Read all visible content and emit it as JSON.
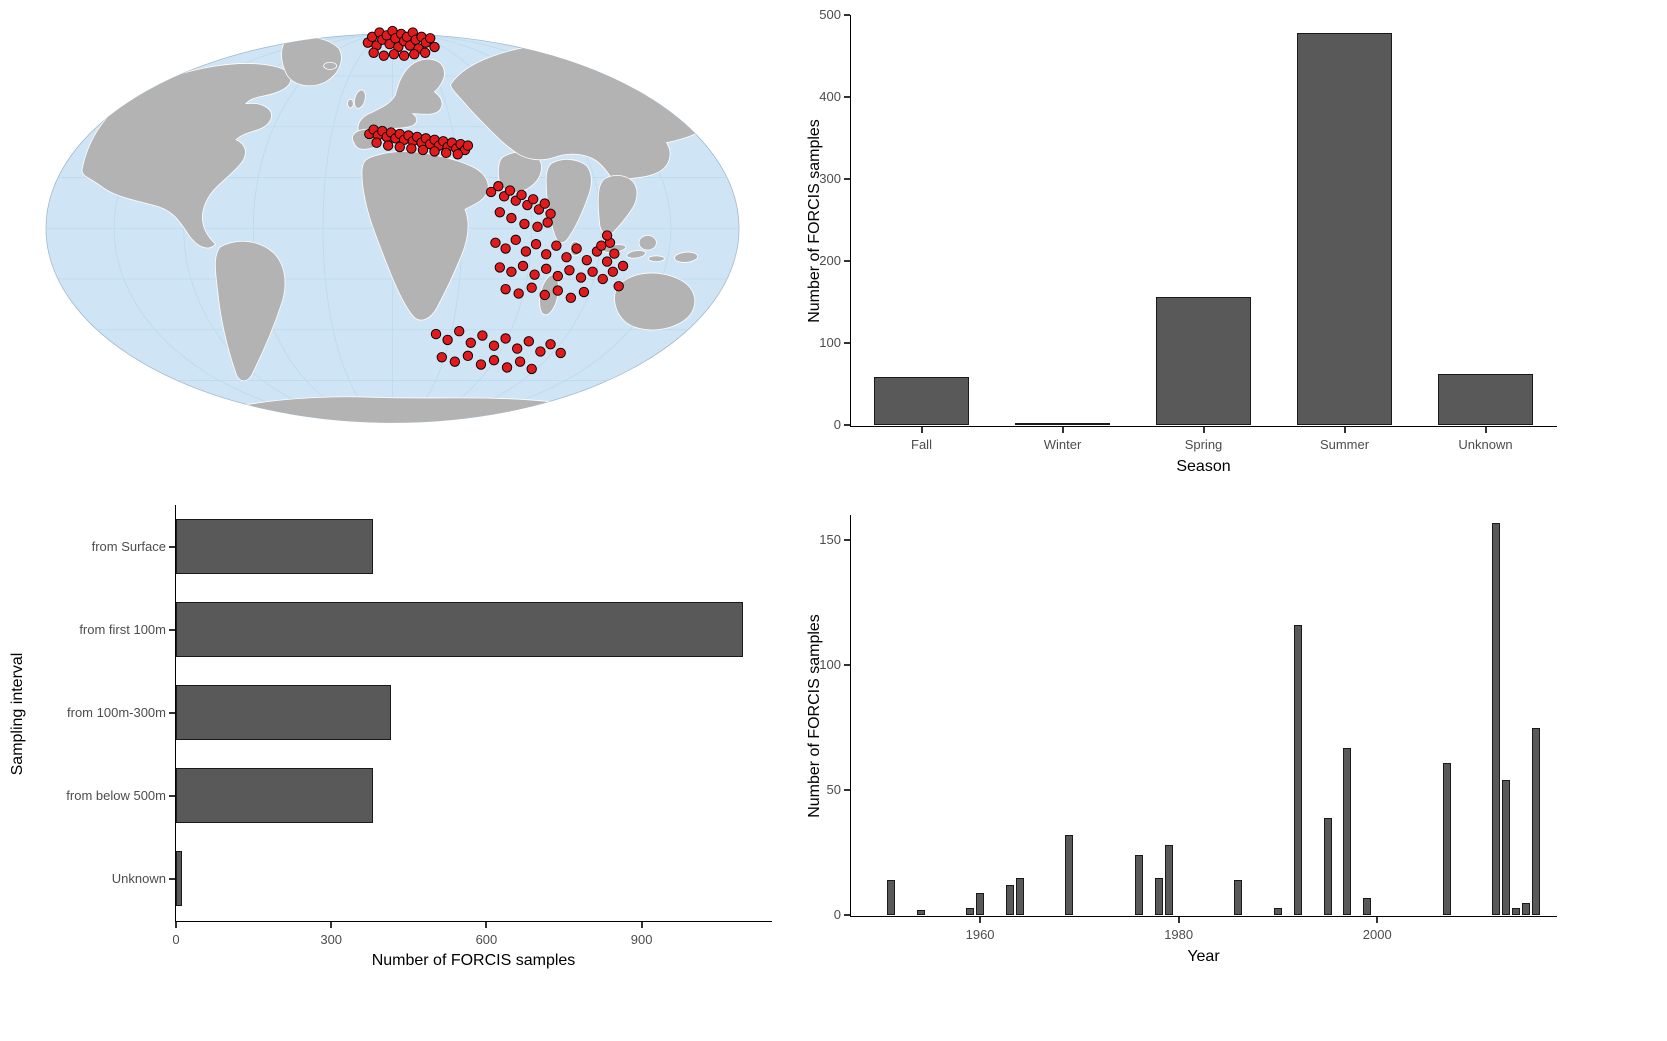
{
  "figure": {
    "background": "#ffffff"
  },
  "chart_data": [
    {
      "type": "map",
      "description": "World map (Robinson-style) showing FORCIS sample locations as red points",
      "ocean_color": "#cfe4f4",
      "land_color": "#b3b3b3",
      "graticule_color": "#badaee",
      "border_color": "#ffffff",
      "marker_color": "#e31a1c",
      "marker_outline": "#000000",
      "marker_regions": [
        "Nordic Seas / Svalbard",
        "Mediterranean Sea",
        "Red Sea / Arabian Sea",
        "Central & Eastern Indian Ocean",
        "Southern Indian Ocean"
      ],
      "markers": [
        [
          466,
          34
        ],
        [
          472,
          26
        ],
        [
          478,
          38
        ],
        [
          482,
          20
        ],
        [
          486,
          30
        ],
        [
          492,
          24
        ],
        [
          496,
          36
        ],
        [
          500,
          18
        ],
        [
          504,
          28
        ],
        [
          508,
          40
        ],
        [
          512,
          22
        ],
        [
          516,
          32
        ],
        [
          520,
          26
        ],
        [
          524,
          38
        ],
        [
          528,
          20
        ],
        [
          532,
          30
        ],
        [
          536,
          42
        ],
        [
          540,
          26
        ],
        [
          546,
          34
        ],
        [
          552,
          28
        ],
        [
          474,
          48
        ],
        [
          488,
          52
        ],
        [
          502,
          50
        ],
        [
          516,
          52
        ],
        [
          530,
          50
        ],
        [
          545,
          48
        ],
        [
          558,
          40
        ],
        [
          468,
          160
        ],
        [
          474,
          154
        ],
        [
          480,
          162
        ],
        [
          486,
          156
        ],
        [
          492,
          164
        ],
        [
          498,
          158
        ],
        [
          504,
          166
        ],
        [
          510,
          160
        ],
        [
          516,
          168
        ],
        [
          522,
          162
        ],
        [
          528,
          170
        ],
        [
          534,
          164
        ],
        [
          540,
          172
        ],
        [
          546,
          166
        ],
        [
          552,
          174
        ],
        [
          558,
          168
        ],
        [
          564,
          176
        ],
        [
          570,
          170
        ],
        [
          576,
          178
        ],
        [
          582,
          172
        ],
        [
          588,
          180
        ],
        [
          594,
          174
        ],
        [
          600,
          182
        ],
        [
          478,
          172
        ],
        [
          494,
          176
        ],
        [
          510,
          178
        ],
        [
          526,
          180
        ],
        [
          542,
          182
        ],
        [
          558,
          184
        ],
        [
          574,
          186
        ],
        [
          590,
          188
        ],
        [
          604,
          176
        ],
        [
          636,
          240
        ],
        [
          646,
          232
        ],
        [
          654,
          246
        ],
        [
          662,
          238
        ],
        [
          670,
          252
        ],
        [
          678,
          244
        ],
        [
          686,
          258
        ],
        [
          694,
          250
        ],
        [
          702,
          264
        ],
        [
          710,
          256
        ],
        [
          718,
          270
        ],
        [
          648,
          268
        ],
        [
          664,
          276
        ],
        [
          682,
          284
        ],
        [
          700,
          288
        ],
        [
          714,
          282
        ],
        [
          642,
          310
        ],
        [
          656,
          318
        ],
        [
          670,
          306
        ],
        [
          684,
          322
        ],
        [
          698,
          312
        ],
        [
          712,
          326
        ],
        [
          726,
          314
        ],
        [
          740,
          330
        ],
        [
          754,
          318
        ],
        [
          768,
          334
        ],
        [
          782,
          322
        ],
        [
          796,
          336
        ],
        [
          648,
          344
        ],
        [
          664,
          350
        ],
        [
          680,
          342
        ],
        [
          696,
          354
        ],
        [
          712,
          346
        ],
        [
          728,
          356
        ],
        [
          744,
          348
        ],
        [
          760,
          358
        ],
        [
          776,
          350
        ],
        [
          790,
          360
        ],
        [
          804,
          350
        ],
        [
          818,
          342
        ],
        [
          656,
          374
        ],
        [
          674,
          380
        ],
        [
          692,
          372
        ],
        [
          710,
          382
        ],
        [
          728,
          376
        ],
        [
          746,
          386
        ],
        [
          764,
          378
        ],
        [
          800,
          310
        ],
        [
          806,
          325
        ],
        [
          812,
          370
        ],
        [
          796,
          300
        ],
        [
          788,
          314
        ],
        [
          560,
          436
        ],
        [
          576,
          444
        ],
        [
          592,
          432
        ],
        [
          608,
          448
        ],
        [
          624,
          438
        ],
        [
          640,
          452
        ],
        [
          656,
          442
        ],
        [
          672,
          456
        ],
        [
          688,
          446
        ],
        [
          704,
          460
        ],
        [
          718,
          450
        ],
        [
          732,
          462
        ],
        [
          568,
          468
        ],
        [
          586,
          474
        ],
        [
          604,
          466
        ],
        [
          622,
          478
        ],
        [
          640,
          472
        ],
        [
          658,
          482
        ],
        [
          676,
          474
        ],
        [
          692,
          484
        ]
      ]
    },
    {
      "type": "bar",
      "title": "",
      "categories": [
        "Fall",
        "Winter",
        "Spring",
        "Summer",
        "Unknown"
      ],
      "values": [
        58,
        2,
        156,
        478,
        62
      ],
      "xlabel": "Season",
      "ylabel": "Number of FORCIS samples",
      "ylim": [
        0,
        500
      ],
      "yticks": [
        0,
        100,
        200,
        300,
        400,
        500
      ],
      "grid": false,
      "legend": false,
      "bar_color": "#595959"
    },
    {
      "type": "bar",
      "orientation": "horizontal",
      "title": "",
      "categories": [
        "from Surface",
        "from first 100m",
        "from 100m-300m",
        "from below 500m",
        "Unknown"
      ],
      "values": [
        380,
        1095,
        415,
        380,
        12
      ],
      "xlabel": "Number of FORCIS samples",
      "ylabel": "Sampling interval",
      "xlim": [
        0,
        1150
      ],
      "xticks": [
        0,
        300,
        600,
        900
      ],
      "grid": false,
      "legend": false,
      "bar_color": "#595959"
    },
    {
      "type": "bar",
      "title": "",
      "x": [
        1951,
        1954,
        1959,
        1960,
        1963,
        1964,
        1969,
        1976,
        1978,
        1979,
        1986,
        1990,
        1992,
        1995,
        1997,
        1999,
        2007,
        2012,
        2013,
        2014,
        2015,
        2016
      ],
      "values": [
        14,
        2,
        3,
        9,
        12,
        15,
        32,
        24,
        15,
        28,
        14,
        3,
        116,
        39,
        67,
        7,
        61,
        157,
        54,
        3,
        5,
        75
      ],
      "xlabel": "Year",
      "ylabel": "Number of FORCIS samples",
      "xlim": [
        1947,
        2018
      ],
      "ylim": [
        0,
        160
      ],
      "yticks": [
        0,
        50,
        100,
        150
      ],
      "xticks": [
        1960,
        1980,
        2000
      ],
      "grid": false,
      "legend": false,
      "bar_color": "#595959"
    }
  ]
}
